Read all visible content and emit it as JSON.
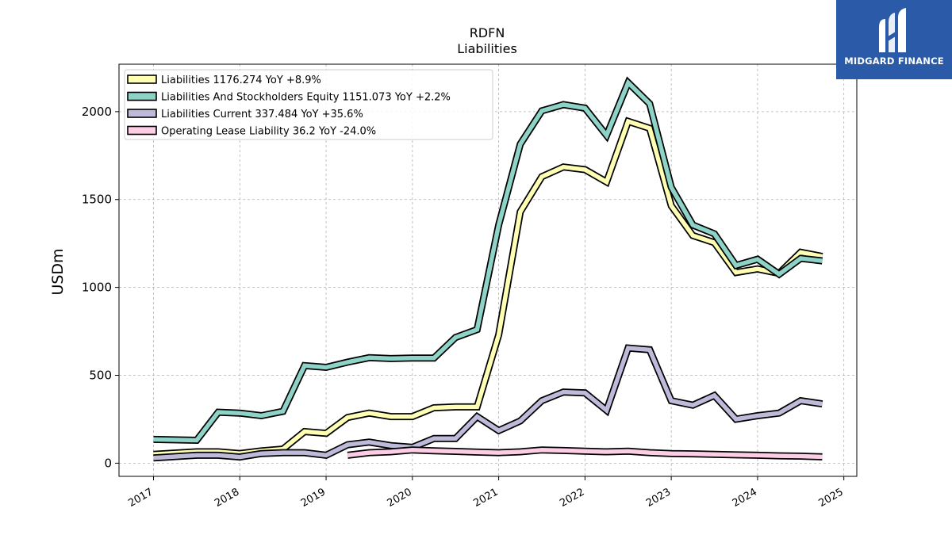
{
  "chart_data": {
    "type": "line",
    "title": "RDFN",
    "subtitle": "Liabilities",
    "ylabel": "USDm",
    "xlabel": "",
    "ylim": [
      -75,
      2270
    ],
    "xlim": [
      2016.6,
      2025.15
    ],
    "yticks": [
      0,
      500,
      1000,
      1500,
      2000
    ],
    "xticks": [
      "2017",
      "2018",
      "2019",
      "2020",
      "2021",
      "2022",
      "2023",
      "2024",
      "2025"
    ],
    "grid": true,
    "legend_position": "top-left",
    "series": [
      {
        "name": "Liabilities",
        "legend_label": "Liabilities  1176.274 YoY +8.9%",
        "color": "#ffffb3",
        "x": [
          2017.0,
          2017.5,
          2017.75,
          2018.0,
          2018.25,
          2018.5,
          2018.75,
          2019.0,
          2019.25,
          2019.5,
          2019.75,
          2020.0,
          2020.25,
          2020.5,
          2020.75,
          2021.0,
          2021.25,
          2021.5,
          2021.75,
          2022.0,
          2022.25,
          2022.5,
          2022.75,
          2023.0,
          2023.25,
          2023.5,
          2023.75,
          2024.0,
          2024.25,
          2024.5,
          2024.75
        ],
        "y": [
          50,
          65,
          65,
          55,
          70,
          80,
          180,
          170,
          260,
          285,
          265,
          265,
          315,
          320,
          320,
          730,
          1430,
          1630,
          1685,
          1670,
          1600,
          1945,
          1905,
          1465,
          1295,
          1255,
          1085,
          1105,
          1080,
          1200,
          1176
        ]
      },
      {
        "name": "Liabilities And Stockholders Equity",
        "legend_label": "Liabilities And Stockholders Equity  1151.073 YoY +2.2%",
        "color": "#8dd3c7",
        "x": [
          2017.0,
          2017.5,
          2017.75,
          2018.0,
          2018.25,
          2018.5,
          2018.75,
          2019.0,
          2019.25,
          2019.5,
          2019.75,
          2020.0,
          2020.25,
          2020.5,
          2020.75,
          2021.0,
          2021.25,
          2021.5,
          2021.75,
          2022.0,
          2022.25,
          2022.5,
          2022.75,
          2023.0,
          2023.25,
          2023.5,
          2023.75,
          2024.0,
          2024.25,
          2024.5,
          2024.75
        ],
        "y": [
          135,
          130,
          290,
          285,
          270,
          295,
          555,
          545,
          575,
          600,
          595,
          598,
          598,
          715,
          760,
          1355,
          1815,
          2005,
          2040,
          2020,
          1865,
          2165,
          2045,
          1570,
          1355,
          1305,
          1125,
          1160,
          1075,
          1165,
          1151
        ]
      },
      {
        "name": "Liabilities Current",
        "legend_label": "Liabilities Current  337.484 YoY +35.6%",
        "color": "#bebada",
        "x": [
          2017.0,
          2017.5,
          2017.75,
          2018.0,
          2018.25,
          2018.5,
          2018.75,
          2019.0,
          2019.25,
          2019.5,
          2019.75,
          2020.0,
          2020.25,
          2020.5,
          2020.75,
          2021.0,
          2021.25,
          2021.5,
          2021.75,
          2022.0,
          2022.25,
          2022.5,
          2022.75,
          2023.0,
          2023.25,
          2023.5,
          2023.75,
          2024.0,
          2024.25,
          2024.5,
          2024.75
        ],
        "y": [
          30,
          45,
          45,
          35,
          55,
          60,
          60,
          45,
          105,
          120,
          100,
          90,
          140,
          140,
          265,
          185,
          240,
          355,
          405,
          400,
          300,
          655,
          645,
          355,
          330,
          385,
          250,
          270,
          285,
          355,
          337
        ]
      },
      {
        "name": "Operating Lease Liability",
        "legend_label": "Operating Lease Liability  36.2 YoY -24.0%",
        "color": "#fccde5",
        "x": [
          2019.25,
          2019.5,
          2019.75,
          2020.0,
          2020.25,
          2020.5,
          2020.75,
          2021.0,
          2021.25,
          2021.5,
          2021.75,
          2022.0,
          2022.25,
          2022.5,
          2022.75,
          2023.0,
          2023.25,
          2023.5,
          2023.75,
          2024.0,
          2024.25,
          2024.5,
          2024.75
        ],
        "y": [
          45,
          60,
          65,
          75,
          70,
          67,
          63,
          60,
          65,
          75,
          72,
          68,
          65,
          68,
          60,
          55,
          53,
          50,
          47,
          45,
          42,
          40,
          36
        ]
      }
    ]
  },
  "logo": {
    "text": "MIDGARD FINANCE",
    "background": "#2a5aa8"
  }
}
